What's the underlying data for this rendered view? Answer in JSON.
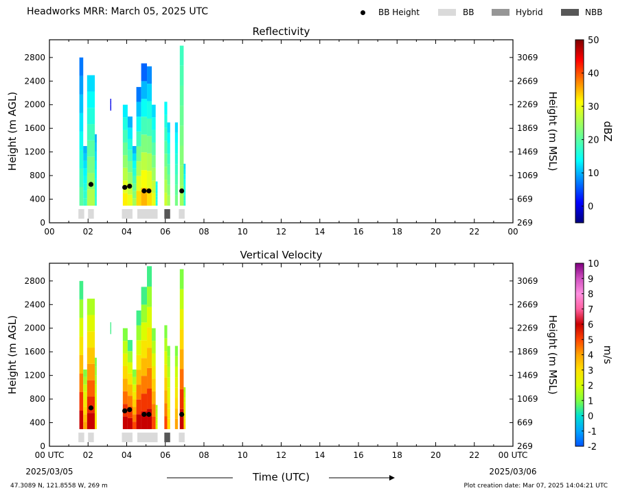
{
  "header": {
    "title": "Headworks MRR:  March 05, 2025 UTC"
  },
  "legend": {
    "items": [
      {
        "label": "BB Height",
        "kind": "marker",
        "color": "#000000"
      },
      {
        "label": "BB",
        "kind": "box",
        "color": "#dadada"
      },
      {
        "label": "Hybrid",
        "kind": "box",
        "color": "#969696"
      },
      {
        "label": "NBB",
        "kind": "box",
        "color": "#575757"
      }
    ]
  },
  "chart_data": [
    {
      "type": "heatmap",
      "title": "Reflectivity",
      "ylabel": "Height (m AGL)",
      "ylabel_right": "Height (m MSL)",
      "xlim": [
        0,
        24
      ],
      "ylim": [
        0,
        3100
      ],
      "x_ticks": [
        "00",
        "02",
        "04",
        "06",
        "08",
        "10",
        "12",
        "14",
        "16",
        "18",
        "20",
        "22",
        "00"
      ],
      "y_ticks": [
        0,
        400,
        800,
        1200,
        1600,
        2000,
        2400,
        2800
      ],
      "y_right_ticks": [
        269,
        669,
        1069,
        1469,
        1869,
        2269,
        2669,
        3069
      ],
      "colorbar": {
        "label": "dBZ",
        "min": -5,
        "max": 50,
        "ticks": [
          0,
          10,
          20,
          30,
          40,
          50
        ],
        "colormap": "jet"
      },
      "precip_columns": [
        {
          "t0": 1.55,
          "t1": 1.75,
          "top": 2800,
          "value_low": 20,
          "value_high": 7
        },
        {
          "t0": 1.75,
          "t1": 1.95,
          "top": 1300,
          "value_low": 18,
          "value_high": 10
        },
        {
          "t0": 1.95,
          "t1": 2.35,
          "top": 2500,
          "value_low": 26,
          "value_high": 12
        },
        {
          "t0": 2.35,
          "t1": 2.45,
          "top": 1500,
          "value_low": 17,
          "value_high": 10
        },
        {
          "t0": 3.15,
          "t1": 3.2,
          "bottom": 1900,
          "top": 2100,
          "value_low": 0,
          "value_high": 0
        },
        {
          "t0": 3.8,
          "t1": 4.05,
          "top": 2000,
          "value_low": 32,
          "value_high": 13
        },
        {
          "t0": 4.05,
          "t1": 4.3,
          "top": 1800,
          "value_low": 30,
          "value_high": 10
        },
        {
          "t0": 4.3,
          "t1": 4.5,
          "top": 1300,
          "value_low": 25,
          "value_high": 10
        },
        {
          "t0": 4.5,
          "t1": 4.75,
          "top": 2300,
          "value_low": 33,
          "value_high": 7
        },
        {
          "t0": 4.75,
          "t1": 5.05,
          "top": 2700,
          "value_low": 35,
          "value_high": 6
        },
        {
          "t0": 5.05,
          "t1": 5.3,
          "top": 2650,
          "value_low": 33,
          "value_high": 8
        },
        {
          "t0": 5.3,
          "t1": 5.5,
          "top": 2000,
          "value_low": 30,
          "value_high": 12
        },
        {
          "t0": 5.5,
          "t1": 5.6,
          "top": 700,
          "value_low": 16,
          "value_high": 14
        },
        {
          "t0": 5.95,
          "t1": 6.1,
          "top": 2050,
          "value_low": 28,
          "value_high": 14
        },
        {
          "t0": 6.1,
          "t1": 6.25,
          "top": 1700,
          "value_low": 25,
          "value_high": 12
        },
        {
          "t0": 6.5,
          "t1": 6.65,
          "top": 1700,
          "value_low": 22,
          "value_high": 12
        },
        {
          "t0": 6.75,
          "t1": 6.95,
          "top": 3000,
          "value_low": 25,
          "value_high": 18
        },
        {
          "t0": 6.95,
          "t1": 7.05,
          "top": 1000,
          "value_low": 17,
          "value_high": 12
        }
      ],
      "bb_height_points": [
        {
          "t": 2.15,
          "h": 650
        },
        {
          "t": 3.9,
          "h": 600
        },
        {
          "t": 4.15,
          "h": 620
        },
        {
          "t": 4.9,
          "h": 540
        },
        {
          "t": 5.15,
          "h": 540
        },
        {
          "t": 6.85,
          "h": 540
        }
      ],
      "bb_type_strip": [
        {
          "t0": 1.5,
          "t1": 1.8,
          "type": "BB"
        },
        {
          "t0": 2.0,
          "t1": 2.3,
          "type": "BB"
        },
        {
          "t0": 3.75,
          "t1": 4.3,
          "type": "BB"
        },
        {
          "t0": 4.55,
          "t1": 5.6,
          "type": "BB"
        },
        {
          "t0": 5.95,
          "t1": 6.25,
          "type": "NBB"
        },
        {
          "t0": 6.7,
          "t1": 7.0,
          "type": "BB"
        }
      ]
    },
    {
      "type": "heatmap",
      "title": "Vertical Velocity",
      "ylabel": "Height (m AGL)",
      "ylabel_right": "Height (m MSL)",
      "xlabel": "Time (UTC)",
      "xlim": [
        0,
        24
      ],
      "ylim": [
        0,
        3100
      ],
      "x_ticks": [
        "00 UTC",
        "02",
        "04",
        "06",
        "08",
        "10",
        "12",
        "14",
        "16",
        "18",
        "20",
        "22",
        "00 UTC"
      ],
      "x_date_start": "2025/03/05",
      "x_date_end": "2025/03/06",
      "y_ticks": [
        0,
        400,
        800,
        1200,
        1600,
        2000,
        2400,
        2800
      ],
      "y_right_ticks": [
        269,
        669,
        1069,
        1469,
        1869,
        2269,
        2669,
        3069
      ],
      "colorbar": {
        "label": "m/s",
        "min": -2,
        "max": 10,
        "ticks": [
          -2,
          -1,
          0,
          1,
          2,
          3,
          4,
          5,
          6,
          7,
          8,
          9,
          10
        ],
        "colormap": "velocity"
      },
      "precip_columns": [
        {
          "t0": 1.55,
          "t1": 1.75,
          "top": 2800,
          "value_low": 6,
          "value_high": 0.5
        },
        {
          "t0": 1.75,
          "t1": 1.95,
          "top": 1300,
          "value_low": 4,
          "value_high": 1
        },
        {
          "t0": 1.95,
          "t1": 2.35,
          "top": 2500,
          "value_low": 6,
          "value_high": 1.5
        },
        {
          "t0": 2.35,
          "t1": 2.45,
          "top": 1500,
          "value_low": 3,
          "value_high": 1
        },
        {
          "t0": 3.15,
          "t1": 3.2,
          "bottom": 1900,
          "top": 2100,
          "value_low": 0.5,
          "value_high": 0.5
        },
        {
          "t0": 3.8,
          "t1": 4.05,
          "top": 2000,
          "value_low": 6,
          "value_high": 1
        },
        {
          "t0": 4.05,
          "t1": 4.3,
          "top": 1800,
          "value_low": 6,
          "value_high": 0.5
        },
        {
          "t0": 4.3,
          "t1": 4.5,
          "top": 1300,
          "value_low": 5,
          "value_high": 1
        },
        {
          "t0": 4.5,
          "t1": 4.75,
          "top": 2300,
          "value_low": 6,
          "value_high": 0.5
        },
        {
          "t0": 4.75,
          "t1": 5.05,
          "top": 2700,
          "value_low": 6,
          "value_high": 0.5
        },
        {
          "t0": 5.05,
          "t1": 5.3,
          "top": 3050,
          "value_low": 6,
          "value_high": 0.5
        },
        {
          "t0": 5.3,
          "t1": 5.5,
          "top": 2000,
          "value_low": 5,
          "value_high": 1
        },
        {
          "t0": 5.5,
          "t1": 5.6,
          "top": 700,
          "value_low": 2,
          "value_high": 1.5
        },
        {
          "t0": 5.95,
          "t1": 6.1,
          "top": 2050,
          "value_low": 5,
          "value_high": 1
        },
        {
          "t0": 6.1,
          "t1": 6.25,
          "top": 1700,
          "value_low": 3,
          "value_high": 1
        },
        {
          "t0": 6.5,
          "t1": 6.65,
          "top": 1700,
          "value_low": 4,
          "value_high": 1
        },
        {
          "t0": 6.75,
          "t1": 6.95,
          "top": 3000,
          "value_low": 6,
          "value_high": 1
        },
        {
          "t0": 6.95,
          "t1": 7.05,
          "top": 1000,
          "value_low": 3,
          "value_high": 1.5
        }
      ],
      "bb_height_points": [
        {
          "t": 2.15,
          "h": 650
        },
        {
          "t": 3.9,
          "h": 600
        },
        {
          "t": 4.15,
          "h": 620
        },
        {
          "t": 4.9,
          "h": 540
        },
        {
          "t": 5.15,
          "h": 540
        },
        {
          "t": 6.85,
          "h": 540
        }
      ],
      "bb_type_strip": [
        {
          "t0": 1.5,
          "t1": 1.8,
          "type": "BB"
        },
        {
          "t0": 2.0,
          "t1": 2.3,
          "type": "BB"
        },
        {
          "t0": 3.75,
          "t1": 4.3,
          "type": "BB"
        },
        {
          "t0": 4.55,
          "t1": 5.6,
          "type": "BB"
        },
        {
          "t0": 5.95,
          "t1": 6.25,
          "type": "NBB"
        },
        {
          "t0": 6.7,
          "t1": 7.0,
          "type": "BB"
        }
      ]
    }
  ],
  "footer": {
    "location": "47.3089 N, 121.8558 W, 269 m",
    "creation": "Plot creation date: Mar 07, 2025 14:04:21 UTC"
  }
}
